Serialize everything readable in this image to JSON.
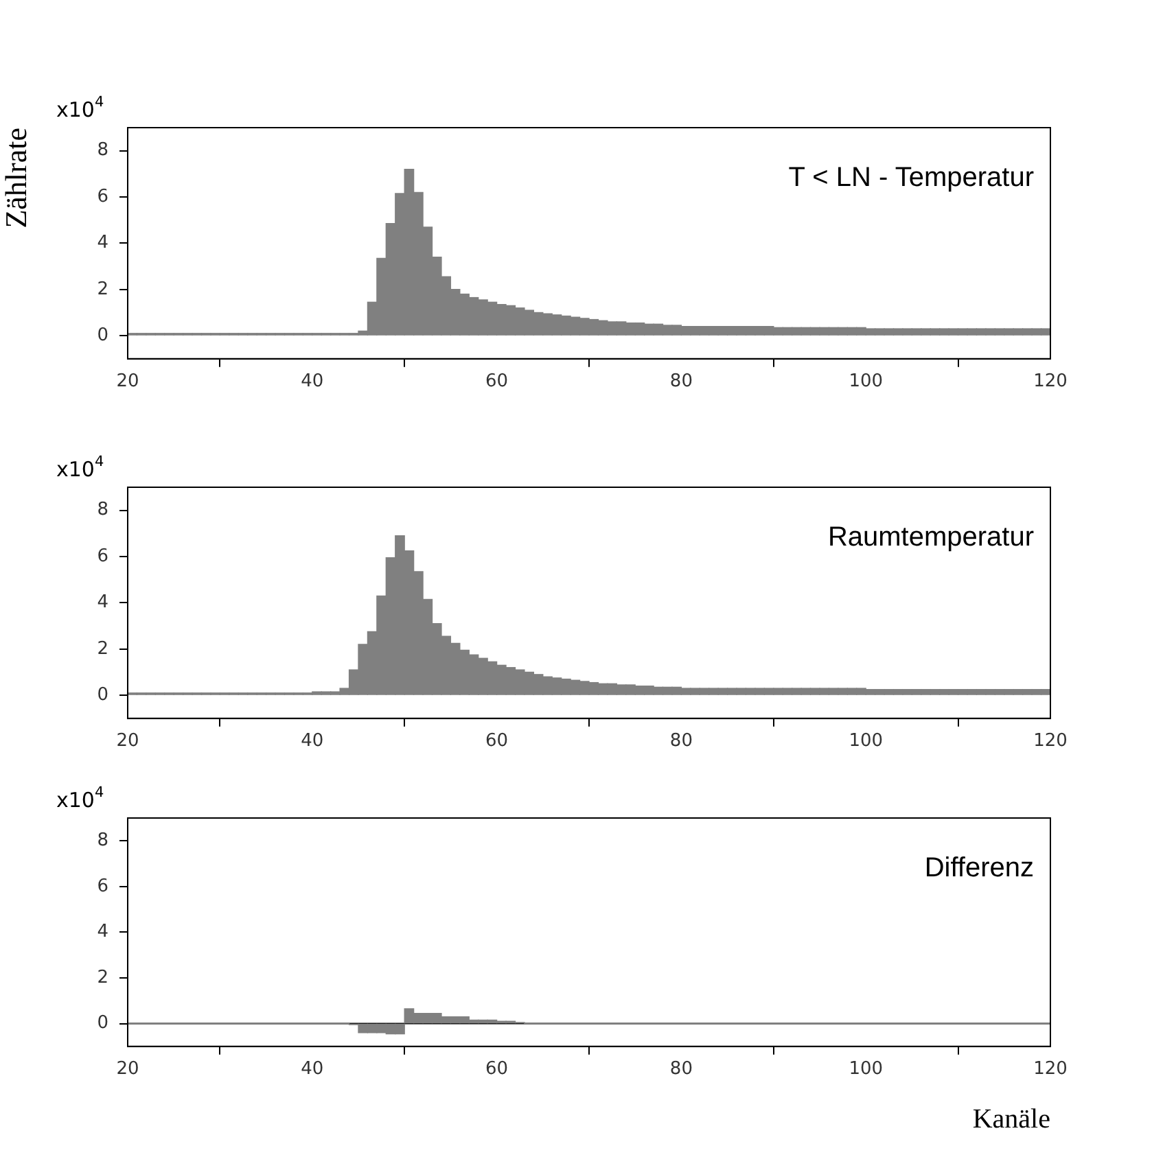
{
  "chart_data": [
    {
      "type": "histogram",
      "title": "T < LN - Temperatur",
      "ylabel": "Zählrate",
      "annotations": [
        "x10$^{4}$"
      ],
      "color": "#808080",
      "bins": [
        20,
        21,
        22,
        23,
        24,
        25,
        26,
        27,
        28,
        29,
        30,
        31,
        32,
        33,
        34,
        35,
        36,
        37,
        38,
        39,
        40,
        41,
        42,
        43,
        44,
        45,
        46,
        47,
        48,
        49,
        50,
        51,
        52,
        53,
        54,
        55,
        56,
        57,
        58,
        59,
        60,
        61,
        62,
        63,
        64,
        65,
        66,
        67,
        68,
        69,
        70,
        71,
        72,
        73,
        74,
        75,
        76,
        77,
        78,
        79,
        80,
        81,
        82,
        83,
        84,
        85,
        86,
        87,
        88,
        89,
        90,
        91,
        92,
        93,
        94,
        95,
        96,
        97,
        98,
        99,
        100,
        101,
        102,
        103,
        104,
        105,
        106,
        107,
        108,
        109,
        110,
        111,
        112,
        113,
        114,
        115,
        116,
        117,
        118,
        119,
        120
      ],
      "values": [
        0.1,
        0.1,
        0.1,
        0.1,
        0.1,
        0.1,
        0.1,
        0.1,
        0.1,
        0.1,
        0.1,
        0.1,
        0.1,
        0.1,
        0.1,
        0.1,
        0.1,
        0.1,
        0.1,
        0.1,
        0.1,
        0.1,
        0.1,
        0.1,
        0.1,
        0.2,
        1.45,
        3.35,
        4.85,
        6.15,
        7.2,
        6.2,
        4.7,
        3.4,
        2.55,
        2.0,
        1.8,
        1.65,
        1.55,
        1.45,
        1.35,
        1.3,
        1.2,
        1.1,
        1.0,
        0.95,
        0.9,
        0.85,
        0.8,
        0.75,
        0.7,
        0.65,
        0.6,
        0.6,
        0.55,
        0.55,
        0.5,
        0.5,
        0.45,
        0.45,
        0.4,
        0.4,
        0.4,
        0.4,
        0.4,
        0.4,
        0.4,
        0.4,
        0.4,
        0.4,
        0.35,
        0.35,
        0.35,
        0.35,
        0.35,
        0.35,
        0.35,
        0.35,
        0.35,
        0.35,
        0.3,
        0.3,
        0.3,
        0.3,
        0.3,
        0.3,
        0.3,
        0.3,
        0.3,
        0.3,
        0.3,
        0.3,
        0.3,
        0.3,
        0.3,
        0.3,
        0.3,
        0.3,
        0.3,
        0.3
      ],
      "xlim": [
        20,
        120
      ],
      "xticks": [
        20,
        40,
        60,
        80,
        100,
        120
      ],
      "ylim": [
        -1,
        9
      ],
      "yticks": [
        0,
        2,
        4,
        6,
        8
      ],
      "grid": false
    },
    {
      "type": "histogram",
      "title": "Raumtemperatur",
      "annotations": [
        "x10$^{4}$"
      ],
      "color": "#808080",
      "bins": [
        20,
        21,
        22,
        23,
        24,
        25,
        26,
        27,
        28,
        29,
        30,
        31,
        32,
        33,
        34,
        35,
        36,
        37,
        38,
        39,
        40,
        41,
        42,
        43,
        44,
        45,
        46,
        47,
        48,
        49,
        50,
        51,
        52,
        53,
        54,
        55,
        56,
        57,
        58,
        59,
        60,
        61,
        62,
        63,
        64,
        65,
        66,
        67,
        68,
        69,
        70,
        71,
        72,
        73,
        74,
        75,
        76,
        77,
        78,
        79,
        80,
        81,
        82,
        83,
        84,
        85,
        86,
        87,
        88,
        89,
        90,
        91,
        92,
        93,
        94,
        95,
        96,
        97,
        98,
        99,
        100,
        101,
        102,
        103,
        104,
        105,
        106,
        107,
        108,
        109,
        110,
        111,
        112,
        113,
        114,
        115,
        116,
        117,
        118,
        119,
        120
      ],
      "values": [
        0.1,
        0.1,
        0.1,
        0.1,
        0.1,
        0.1,
        0.1,
        0.1,
        0.1,
        0.1,
        0.1,
        0.1,
        0.1,
        0.1,
        0.1,
        0.1,
        0.1,
        0.1,
        0.1,
        0.1,
        0.15,
        0.15,
        0.15,
        0.3,
        1.1,
        2.2,
        2.75,
        4.3,
        5.95,
        6.9,
        6.25,
        5.35,
        4.15,
        3.1,
        2.55,
        2.25,
        1.95,
        1.75,
        1.6,
        1.45,
        1.3,
        1.2,
        1.1,
        1.0,
        0.9,
        0.8,
        0.75,
        0.7,
        0.65,
        0.6,
        0.55,
        0.5,
        0.5,
        0.45,
        0.45,
        0.4,
        0.4,
        0.35,
        0.35,
        0.35,
        0.3,
        0.3,
        0.3,
        0.3,
        0.3,
        0.3,
        0.3,
        0.3,
        0.3,
        0.3,
        0.3,
        0.3,
        0.3,
        0.3,
        0.3,
        0.3,
        0.3,
        0.3,
        0.3,
        0.3,
        0.25,
        0.25,
        0.25,
        0.25,
        0.25,
        0.25,
        0.25,
        0.25,
        0.25,
        0.25,
        0.25,
        0.25,
        0.25,
        0.25,
        0.25,
        0.25,
        0.25,
        0.25,
        0.25,
        0.25
      ],
      "xlim": [
        20,
        120
      ],
      "xticks": [
        20,
        40,
        60,
        80,
        100,
        120
      ],
      "ylim": [
        -1,
        9
      ],
      "yticks": [
        0,
        2,
        4,
        6,
        8
      ],
      "grid": false
    },
    {
      "type": "histogram",
      "title": "Differenz",
      "xlabel": "Kanäle",
      "annotations": [
        "x10$^{4}$"
      ],
      "color": "#808080",
      "bins": [
        20,
        21,
        22,
        23,
        24,
        25,
        26,
        27,
        28,
        29,
        30,
        31,
        32,
        33,
        34,
        35,
        36,
        37,
        38,
        39,
        40,
        41,
        42,
        43,
        44,
        45,
        46,
        47,
        48,
        49,
        50,
        51,
        52,
        53,
        54,
        55,
        56,
        57,
        58,
        59,
        60,
        61,
        62,
        63,
        64,
        65,
        66,
        67,
        68,
        69,
        70,
        71,
        72,
        73,
        74,
        75,
        76,
        77,
        78,
        79,
        80,
        81,
        82,
        83,
        84,
        85,
        86,
        87,
        88,
        89,
        90,
        91,
        92,
        93,
        94,
        95,
        96,
        97,
        98,
        99,
        100,
        101,
        102,
        103,
        104,
        105,
        106,
        107,
        108,
        109,
        110,
        111,
        112,
        113,
        114,
        115,
        116,
        117,
        118,
        119,
        120
      ],
      "values": [
        0,
        0,
        0,
        0,
        0,
        0,
        0,
        0,
        0,
        0,
        0,
        0,
        0,
        0,
        0,
        0,
        0,
        0,
        0,
        0,
        0,
        0,
        0,
        0,
        -0.05,
        -0.4,
        -0.4,
        -0.4,
        -0.45,
        -0.45,
        0.65,
        0.45,
        0.45,
        0.45,
        0.3,
        0.3,
        0.3,
        0.15,
        0.15,
        0.15,
        0.1,
        0.1,
        0.05,
        0,
        0,
        0,
        0,
        0,
        0,
        0,
        0,
        0,
        0,
        0,
        0,
        0,
        0,
        0,
        0,
        0,
        0,
        0,
        0,
        0,
        0,
        0,
        0,
        0,
        0,
        0,
        0,
        0,
        0,
        0,
        0,
        0,
        0,
        0,
        0,
        0,
        0,
        0,
        0,
        0,
        0,
        0,
        0,
        0,
        0,
        0,
        0,
        0,
        0,
        0,
        0,
        0,
        0,
        0,
        0,
        0
      ],
      "xlim": [
        20,
        120
      ],
      "xticks": [
        20,
        40,
        60,
        80,
        100,
        120
      ],
      "ylim": [
        -1,
        9
      ],
      "yticks": [
        0,
        2,
        4,
        6,
        8
      ],
      "grid": false,
      "ref_lines": [
        {
          "axis": "y",
          "value": 0,
          "color": "#000000"
        }
      ]
    }
  ]
}
